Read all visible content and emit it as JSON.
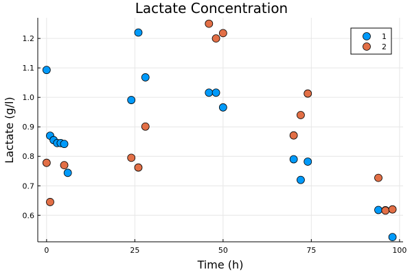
{
  "chart_data": {
    "type": "scatter",
    "title": "Lactate Concentration",
    "xlabel": "Time (h)",
    "ylabel": "Lactate (g/l)",
    "xlim": [
      -2.5,
      101
    ],
    "ylim": [
      0.51,
      1.27
    ],
    "xticks": [
      0,
      25,
      50,
      75,
      100
    ],
    "yticks": [
      0.6,
      0.7,
      0.8,
      0.9,
      1.0,
      1.1,
      1.2
    ],
    "xtick_labels": [
      "0",
      "25",
      "50",
      "75",
      "100"
    ],
    "ytick_labels": [
      "0.6",
      "0.7",
      "0.8",
      "0.9",
      "1.0",
      "1.1",
      "1.2"
    ],
    "grid": true,
    "legend_position": "top-right",
    "series": [
      {
        "name": "1",
        "color": "#009AFA",
        "x": [
          0,
          1,
          2,
          3,
          4,
          5,
          6,
          24,
          26,
          28,
          46,
          48,
          50,
          70,
          72,
          74,
          94,
          96,
          98
        ],
        "y": [
          1.093,
          0.87,
          0.855,
          0.845,
          0.845,
          0.842,
          0.744,
          0.991,
          1.22,
          1.068,
          1.016,
          1.016,
          0.966,
          0.79,
          0.72,
          0.782,
          0.618,
          0.617,
          0.526
        ]
      },
      {
        "name": "2",
        "color": "#E26F46",
        "x": [
          0,
          1,
          5,
          24,
          26,
          28,
          46,
          48,
          50,
          70,
          72,
          74,
          94,
          96,
          98
        ],
        "y": [
          0.778,
          0.645,
          0.77,
          0.795,
          0.762,
          0.901,
          1.25,
          1.2,
          1.218,
          0.871,
          0.94,
          1.013,
          0.727,
          0.616,
          0.62
        ]
      }
    ]
  }
}
